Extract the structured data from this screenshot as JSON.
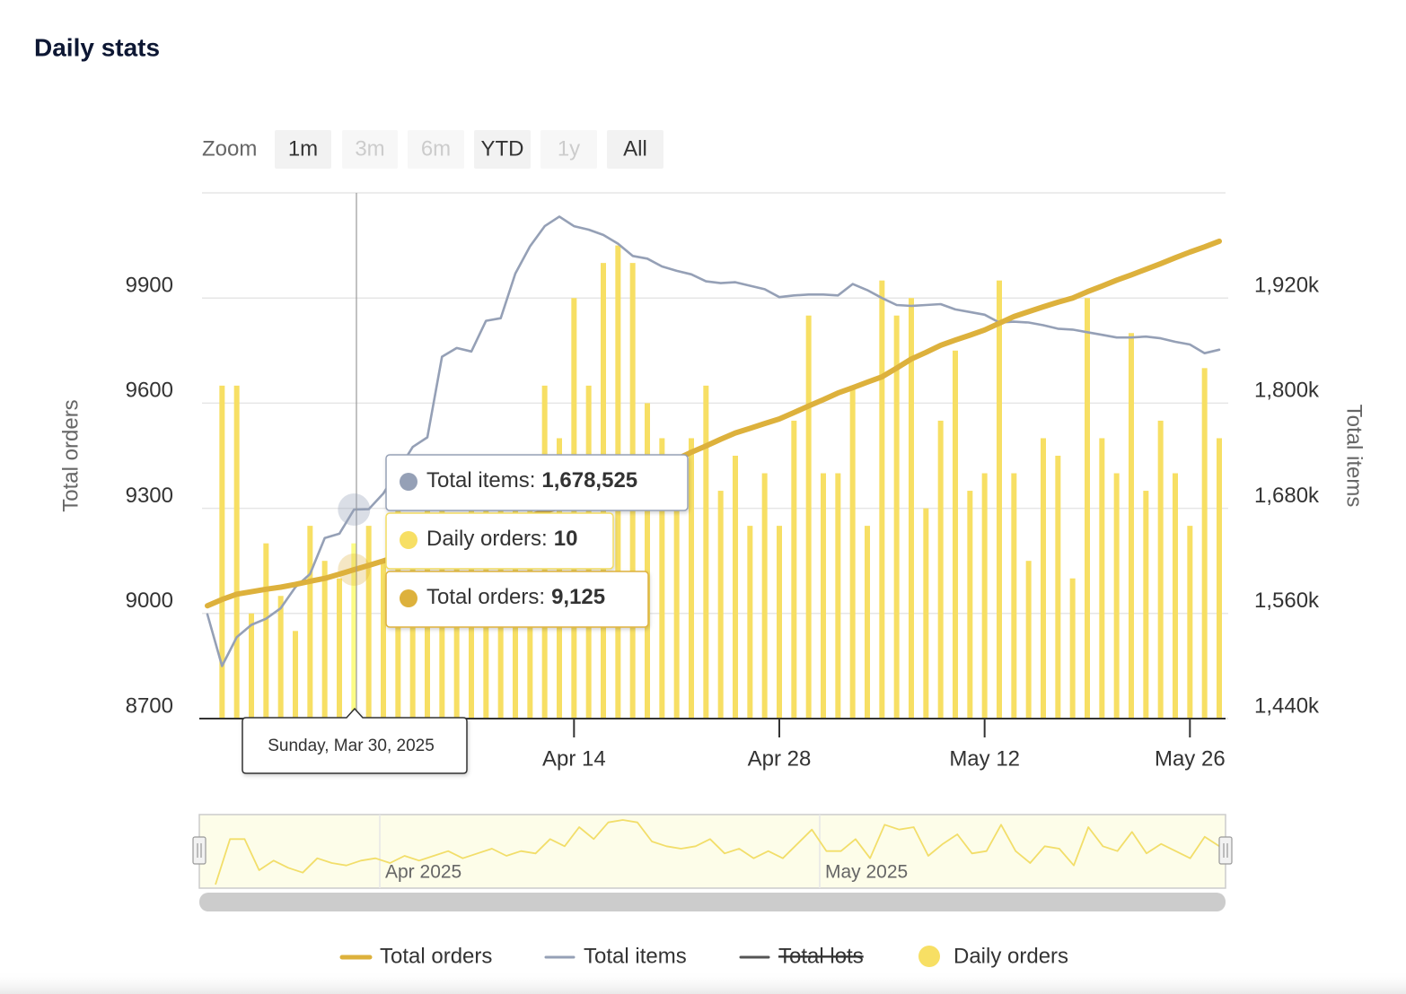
{
  "chart_data": {
    "type": "stock",
    "title": "Daily stats",
    "zoom": {
      "label": "Zoom",
      "buttons": [
        {
          "label": "1m",
          "enabled": true
        },
        {
          "label": "3m",
          "enabled": false
        },
        {
          "label": "6m",
          "enabled": false
        },
        {
          "label": "YTD",
          "enabled": true
        },
        {
          "label": "1y",
          "enabled": false
        },
        {
          "label": "All",
          "enabled": true
        }
      ]
    },
    "y_label": "Total orders",
    "y2_label": "Total items",
    "x": [
      "2025-03-20",
      "2025-03-21",
      "2025-03-22",
      "2025-03-23",
      "2025-03-24",
      "2025-03-25",
      "2025-03-26",
      "2025-03-27",
      "2025-03-28",
      "2025-03-29",
      "2025-03-30",
      "2025-03-31",
      "2025-04-01",
      "2025-04-02",
      "2025-04-03",
      "2025-04-04",
      "2025-04-05",
      "2025-04-06",
      "2025-04-07",
      "2025-04-08",
      "2025-04-09",
      "2025-04-10",
      "2025-04-11",
      "2025-04-12",
      "2025-04-13",
      "2025-04-14",
      "2025-04-15",
      "2025-04-16",
      "2025-04-17",
      "2025-04-18",
      "2025-04-19",
      "2025-04-20",
      "2025-04-21",
      "2025-04-22",
      "2025-04-23",
      "2025-04-24",
      "2025-04-25",
      "2025-04-26",
      "2025-04-27",
      "2025-04-28",
      "2025-04-29",
      "2025-04-30",
      "2025-05-01",
      "2025-05-02",
      "2025-05-03",
      "2025-05-04",
      "2025-05-05",
      "2025-05-06",
      "2025-05-07",
      "2025-05-08",
      "2025-05-09",
      "2025-05-10",
      "2025-05-11",
      "2025-05-12",
      "2025-05-13",
      "2025-05-14",
      "2025-05-15",
      "2025-05-16",
      "2025-05-17",
      "2025-05-18",
      "2025-05-19",
      "2025-05-20",
      "2025-05-21",
      "2025-05-22",
      "2025-05-23",
      "2025-05-24",
      "2025-05-25",
      "2025-05-26",
      "2025-05-27",
      "2025-05-28"
    ],
    "xlim": [
      "2025-03-20",
      "2025-05-28"
    ],
    "xticks": [
      {
        "value": "2025-04-14",
        "label": "Apr 14"
      },
      {
        "value": "2025-04-28",
        "label": "Apr 28"
      },
      {
        "value": "2025-05-12",
        "label": "May 12"
      },
      {
        "value": "2025-05-26",
        "label": "May 26"
      }
    ],
    "ylim": [
      8700,
      10200
    ],
    "yticks": [
      8700,
      9000,
      9300,
      9600,
      9900
    ],
    "y2lim": [
      1440000,
      2040000
    ],
    "y2ticks": [
      {
        "value": 1440000,
        "label": "1,440k"
      },
      {
        "value": 1560000,
        "label": "1,560k"
      },
      {
        "value": 1680000,
        "label": "1,680k"
      },
      {
        "value": 1800000,
        "label": "1,800k"
      },
      {
        "value": 1920000,
        "label": "1,920k"
      }
    ],
    "y3lim": [
      0,
      30
    ],
    "grid": true,
    "series": [
      {
        "name": "Total orders",
        "type": "line",
        "color": "#ddb13c",
        "axis": "y",
        "values": [
          9022,
          9040,
          9055,
          9062,
          9069,
          9075,
          9083,
          9092,
          9100,
          9112,
          9125,
          9137,
          9150,
          9163,
          9176,
          9189,
          9202,
          9215,
          9228,
          9240,
          9252,
          9265,
          9278,
          9291,
          9304,
          9317,
          9333,
          9350,
          9367,
          9384,
          9400,
          9420,
          9440,
          9460,
          9478,
          9497,
          9515,
          9528,
          9542,
          9555,
          9573,
          9592,
          9610,
          9629,
          9644,
          9660,
          9675,
          9700,
          9726,
          9745,
          9765,
          9780,
          9794,
          9809,
          9828,
          9847,
          9861,
          9875,
          9888,
          9900,
          9918,
          9934,
          9951,
          9966,
          9982,
          9998,
          10015,
          10031,
          10046,
          10062
        ]
      },
      {
        "name": "Total items",
        "type": "line",
        "color": "#95a0b6",
        "axis": "y2",
        "values": [
          1559000,
          1500000,
          1533000,
          1547000,
          1554000,
          1566000,
          1590000,
          1605000,
          1646000,
          1651000,
          1678525,
          1679000,
          1697000,
          1723000,
          1750000,
          1761000,
          1853000,
          1863000,
          1859000,
          1894000,
          1897000,
          1948000,
          1979000,
          2002000,
          2013000,
          2002000,
          1998000,
          1992000,
          1982000,
          1968000,
          1965000,
          1956000,
          1951000,
          1947000,
          1939000,
          1937000,
          1938000,
          1934000,
          1930000,
          1921000,
          1923000,
          1924000,
          1924000,
          1923000,
          1936000,
          1929000,
          1920000,
          1912000,
          1911000,
          1912000,
          1913000,
          1907000,
          1904000,
          1901000,
          1892000,
          1893000,
          1892000,
          1889000,
          1885000,
          1884000,
          1881000,
          1878000,
          1875000,
          1875000,
          1876000,
          1874000,
          1870000,
          1867000,
          1857000,
          1861000
        ]
      },
      {
        "name": "Total lots",
        "type": "line",
        "color": "#555555",
        "visible": false
      },
      {
        "name": "Daily orders",
        "type": "column",
        "color": "#f7df64",
        "axis": "y3",
        "values": [
          0,
          19,
          19,
          6,
          10,
          7,
          5,
          11,
          9,
          8,
          10,
          11,
          9,
          12,
          10,
          12,
          14,
          11,
          13,
          15,
          12,
          14,
          13,
          19,
          16,
          24,
          19,
          26,
          27,
          26,
          18,
          16,
          15,
          16,
          19,
          13,
          15,
          11,
          14,
          11,
          17,
          23,
          14,
          14,
          19,
          11,
          25,
          23,
          24,
          12,
          17,
          21,
          13,
          14,
          25,
          14,
          9,
          16,
          15,
          8,
          24,
          16,
          14,
          22,
          13,
          17,
          14,
          11,
          20,
          16
        ]
      }
    ],
    "tooltip": {
      "date": "Sunday, Mar 30, 2025",
      "rows": [
        {
          "label": "Total items:",
          "value_label": "1,678,525"
        },
        {
          "label": "Daily orders:",
          "value_label": "10"
        },
        {
          "label": "Total orders:",
          "value_label": "9,125"
        }
      ]
    },
    "navigator": {
      "labels": [
        {
          "value": "2025-04-01",
          "label": "Apr 2025"
        },
        {
          "value": "2025-05-01",
          "label": "May 2025"
        }
      ]
    }
  }
}
